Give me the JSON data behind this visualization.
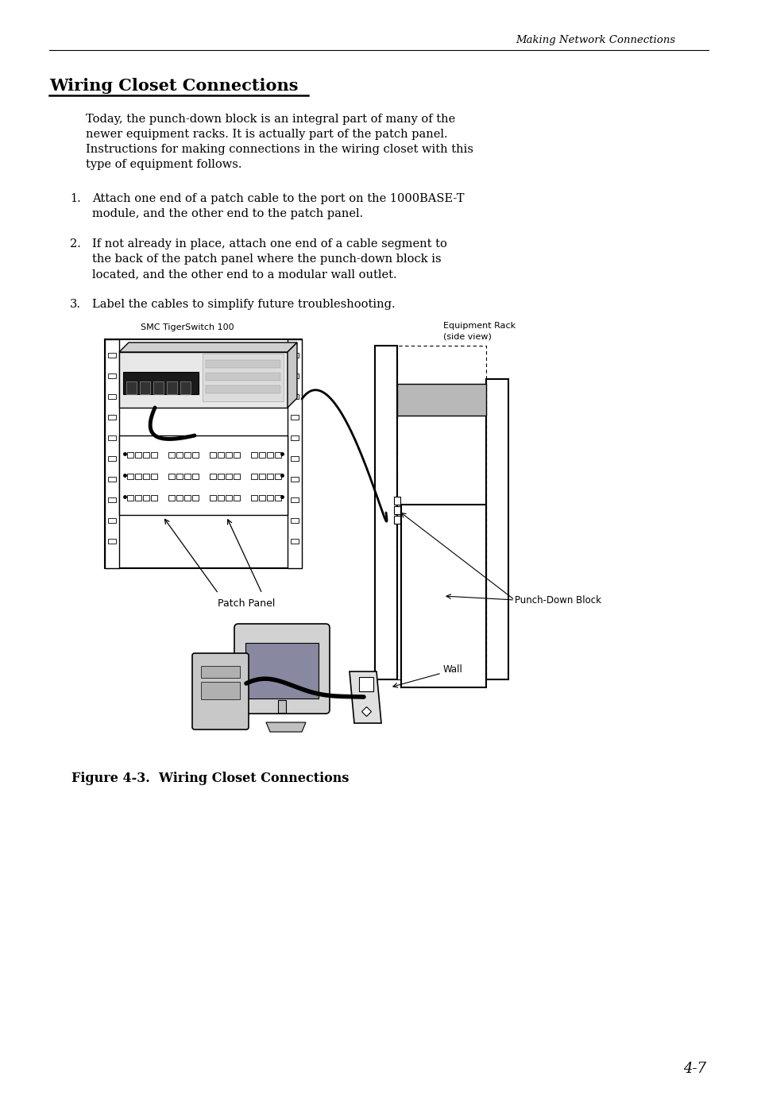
{
  "bg_color": "#ffffff",
  "header_text": "Making Network Connections",
  "section_title": "Wiring Closet Connections",
  "para_lines": [
    "Today, the punch-down block is an integral part of many of the",
    "newer equipment racks. It is actually part of the patch panel.",
    "Instructions for making connections in the wiring closet with this",
    "type of equipment follows."
  ],
  "item1_num": "1.",
  "item1_a": "Attach one end of a patch cable to the port on the 1000BASE-T",
  "item1_b": "module, and the other end to the patch panel.",
  "item2_num": "2.",
  "item2_a": "If not already in place, attach one end of a cable segment to",
  "item2_b": "the back of the patch panel where the punch-down block is",
  "item2_c": "located, and the other end to a modular wall outlet.",
  "item3_num": "3.",
  "item3_a": "Label the cables to simplify future troubleshooting.",
  "label_smc": "SMC TigerSwitch 100",
  "label_rack_1": "Equipment Rack",
  "label_rack_2": "(side view)",
  "label_patch": "Patch Panel",
  "label_pdb": "Punch-Down Block",
  "label_wall": "Wall",
  "fig_caption": "Figure 4-3.  Wiring Closet Connections",
  "page_num": "4-7"
}
